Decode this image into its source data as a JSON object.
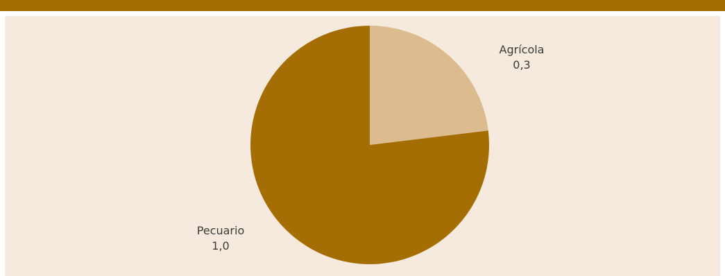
{
  "colors": {
    "header_bar": "#a56e04",
    "panel_background": "#f5eadd",
    "pecuario": "#a56e04",
    "agricola": "#dcbc8e",
    "label_text": "#3a3a3a"
  },
  "chart_data": {
    "type": "pie",
    "title": "",
    "slices": [
      {
        "name": "Agrícola",
        "value_label": "0,3",
        "value": 0.3,
        "color": "#dcbc8e"
      },
      {
        "name": "Pecuario",
        "value_label": "1,0",
        "value": 1.0,
        "color": "#a56e04"
      }
    ],
    "start_angle_deg": 0,
    "direction": "clockwise",
    "legend": "none",
    "labels": "outside"
  }
}
